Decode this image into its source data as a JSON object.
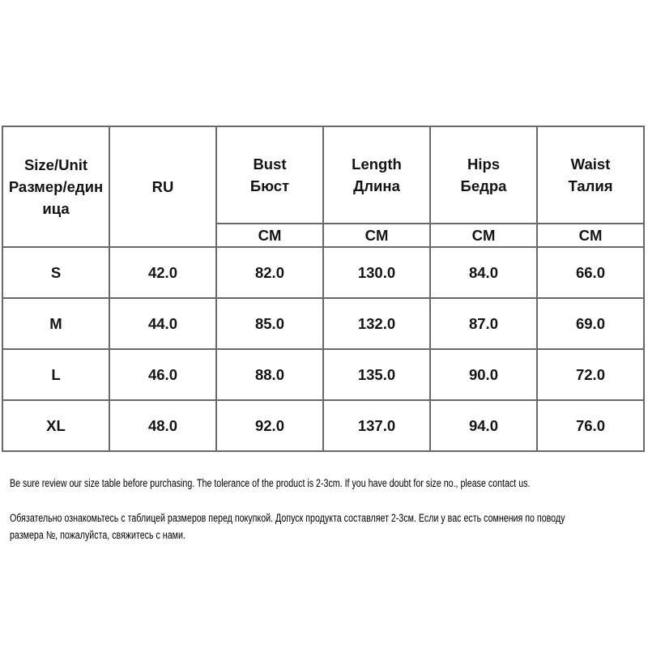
{
  "page": {
    "background_color": "#ffffff",
    "border_color": "#696969",
    "text_color": "#141414"
  },
  "size_chart": {
    "header": {
      "size_unit": "Size/Unit\nРазмер/един\nица",
      "ru": "RU",
      "bust": "Bust\nБюст",
      "length": "Length\nДлина",
      "hips": "Hips\nБедра",
      "waist": "Waist\nТалия"
    },
    "unit_row": {
      "bust": "CM",
      "length": "CM",
      "hips": "CM",
      "waist": "CM"
    },
    "rows": [
      {
        "size": "S",
        "ru": "42.0",
        "bust": "82.0",
        "length": "130.0",
        "hips": "84.0",
        "waist": "66.0"
      },
      {
        "size": "M",
        "ru": "44.0",
        "bust": "85.0",
        "length": "132.0",
        "hips": "87.0",
        "waist": "69.0"
      },
      {
        "size": "L",
        "ru": "46.0",
        "bust": "88.0",
        "length": "135.0",
        "hips": "90.0",
        "waist": "72.0"
      },
      {
        "size": "XL",
        "ru": "48.0",
        "bust": "92.0",
        "length": "137.0",
        "hips": "94.0",
        "waist": "76.0"
      }
    ]
  },
  "notes": {
    "en": "Be sure review our size table before purchasing. The tolerance of the product is 2-3cm. If you have doubt for size no., please contact us.",
    "ru": "Обязательно ознакомьтесь с таблицей размеров перед покупкой. Допуск продукта составляет 2-3см. Если у вас есть сомнения по поводу\nразмера №, пожалуйста, свяжитесь с нами."
  }
}
